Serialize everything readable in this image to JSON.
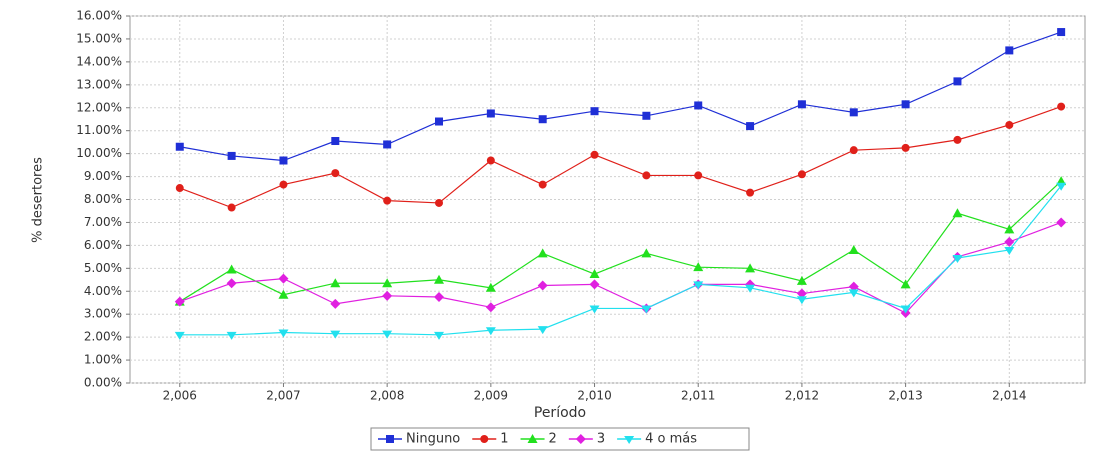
{
  "chart_data": {
    "type": "line",
    "x_label": "Período",
    "y_label": "% desertores",
    "x": [
      2006,
      2006.5,
      2007,
      2007.5,
      2008,
      2008.5,
      2009,
      2009.5,
      2010,
      2010.5,
      2011,
      2011.5,
      2012,
      2012.5,
      2013,
      2013.5,
      2014,
      2014.5
    ],
    "xlim": [
      2005.52,
      2014.73
    ],
    "xticks": [
      {
        "value": 2006,
        "label": "2,006"
      },
      {
        "value": 2007,
        "label": "2,007"
      },
      {
        "value": 2008,
        "label": "2,008"
      },
      {
        "value": 2009,
        "label": "2,009"
      },
      {
        "value": 2010,
        "label": "2,010"
      },
      {
        "value": 2011,
        "label": "2,011"
      },
      {
        "value": 2012,
        "label": "2,012"
      },
      {
        "value": 2013,
        "label": "2,013"
      },
      {
        "value": 2014,
        "label": "2,014"
      }
    ],
    "ylim": [
      0,
      16
    ],
    "yticks": [
      {
        "value": 0,
        "label": "0.00%"
      },
      {
        "value": 1,
        "label": "1.00%"
      },
      {
        "value": 2,
        "label": "2.00%"
      },
      {
        "value": 3,
        "label": "3.00%"
      },
      {
        "value": 4,
        "label": "4.00%"
      },
      {
        "value": 5,
        "label": "5.00%"
      },
      {
        "value": 6,
        "label": "6.00%"
      },
      {
        "value": 7,
        "label": "7.00%"
      },
      {
        "value": 8,
        "label": "8.00%"
      },
      {
        "value": 9,
        "label": "9.00%"
      },
      {
        "value": 10,
        "label": "10.00%"
      },
      {
        "value": 11,
        "label": "11.00%"
      },
      {
        "value": 12,
        "label": "12.00%"
      },
      {
        "value": 13,
        "label": "13.00%"
      },
      {
        "value": 14,
        "label": "14.00%"
      },
      {
        "value": 15,
        "label": "15.00%"
      },
      {
        "value": 16,
        "label": "16.00%"
      }
    ],
    "grid": true,
    "legend": "bottom",
    "series": [
      {
        "name": "Ninguno",
        "color": "#1f2fd6",
        "marker": "square",
        "values": [
          10.3,
          9.9,
          9.7,
          10.55,
          10.4,
          11.4,
          11.75,
          11.5,
          11.85,
          11.65,
          12.1,
          11.2,
          12.15,
          11.8,
          12.15,
          13.15,
          14.5,
          15.3
        ]
      },
      {
        "name": "1",
        "color": "#e0201a",
        "marker": "circle",
        "values": [
          8.5,
          7.65,
          8.65,
          9.15,
          7.95,
          7.85,
          9.7,
          8.65,
          9.95,
          9.05,
          9.05,
          8.3,
          9.1,
          10.15,
          10.25,
          10.6,
          11.25,
          12.05
        ]
      },
      {
        "name": "2",
        "color": "#22e01e",
        "marker": "triangle",
        "values": [
          3.55,
          4.95,
          3.85,
          4.35,
          4.35,
          4.5,
          4.15,
          5.65,
          4.75,
          5.65,
          5.05,
          5.0,
          4.45,
          5.8,
          4.3,
          7.4,
          6.7,
          8.8
        ]
      },
      {
        "name": "3",
        "color": "#e020e0",
        "marker": "diamond",
        "values": [
          3.55,
          4.35,
          4.55,
          3.45,
          3.8,
          3.75,
          3.3,
          4.25,
          4.3,
          3.25,
          4.3,
          4.3,
          3.9,
          4.2,
          3.05,
          5.5,
          6.15,
          7.0
        ]
      },
      {
        "name": "4 o más",
        "color": "#22e0ee",
        "marker": "triangle-down",
        "values": [
          2.1,
          2.1,
          2.2,
          2.15,
          2.15,
          2.1,
          2.3,
          2.35,
          3.25,
          3.25,
          4.3,
          4.15,
          3.65,
          3.95,
          3.25,
          5.45,
          5.8,
          8.6
        ]
      }
    ]
  }
}
